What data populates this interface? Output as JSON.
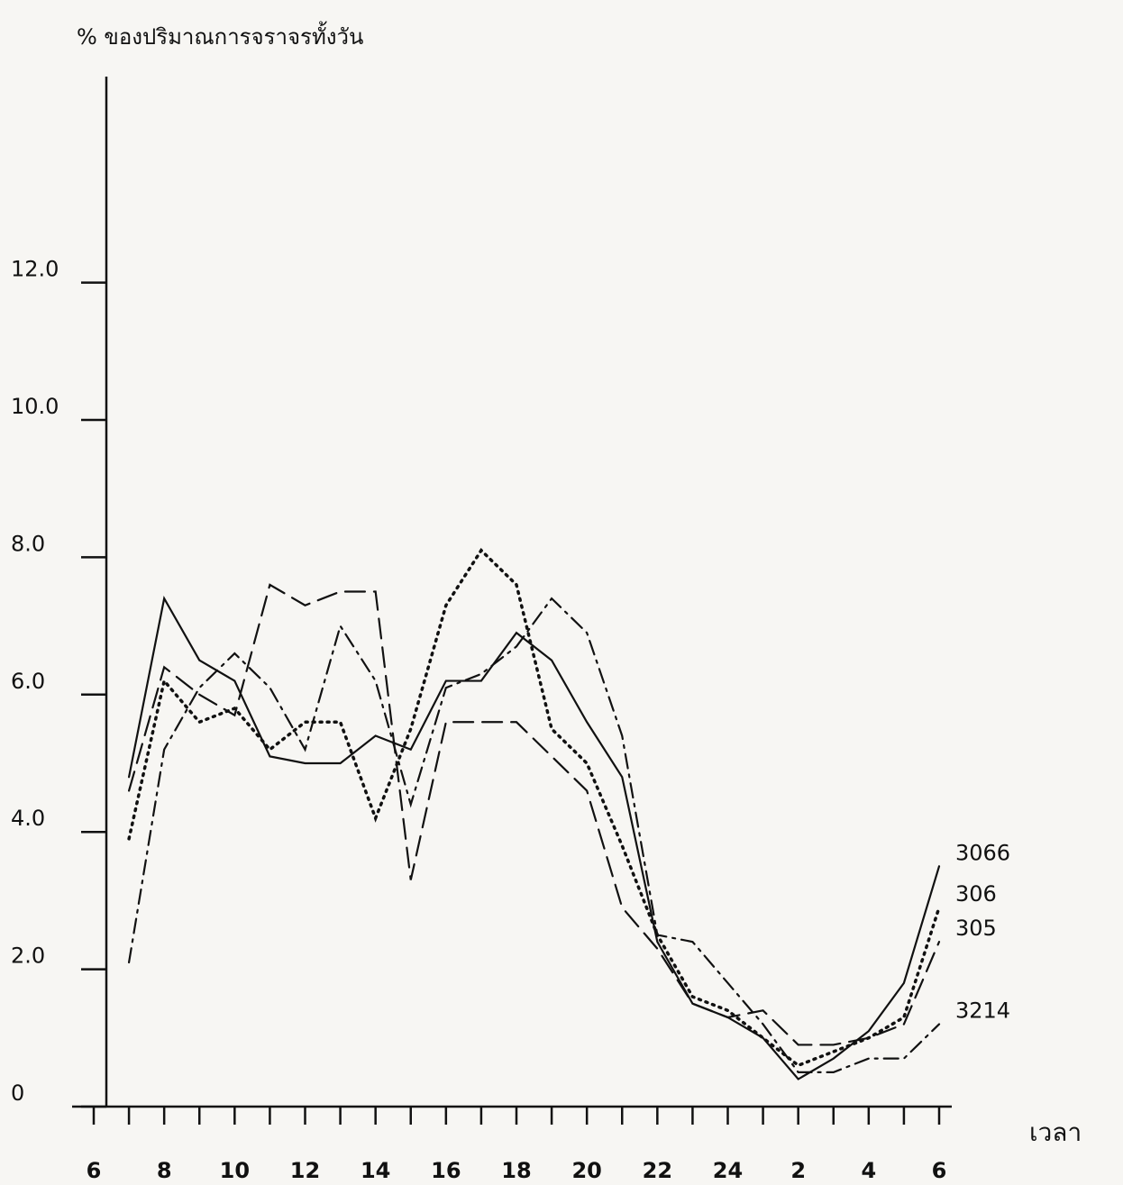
{
  "chart_data": {
    "type": "line",
    "title": "% ของปริมาณการจราจรทั้งวัน",
    "x_label": "เวลา",
    "x": [
      7,
      8,
      9,
      10,
      11,
      12,
      13,
      14,
      15,
      16,
      17,
      18,
      19,
      20,
      21,
      22,
      23,
      24,
      25,
      26,
      27,
      28,
      29,
      30
    ],
    "series": [
      {
        "name": "3066",
        "color": "#111111",
        "dash": "solid",
        "values": [
          4.8,
          7.4,
          6.5,
          6.2,
          5.1,
          5.0,
          5.0,
          5.4,
          5.2,
          6.2,
          6.2,
          6.9,
          6.5,
          5.6,
          4.8,
          2.4,
          1.5,
          1.3,
          1.0,
          0.4,
          0.7,
          1.1,
          1.8,
          3.5
        ]
      },
      {
        "name": "306",
        "color": "#111111",
        "dash": "dotted",
        "values": [
          3.9,
          6.2,
          5.6,
          5.8,
          5.2,
          5.6,
          5.6,
          4.2,
          5.5,
          7.3,
          8.1,
          7.6,
          5.5,
          5.0,
          3.8,
          2.5,
          1.6,
          1.4,
          1.0,
          0.6,
          0.8,
          1.0,
          1.3,
          2.9
        ]
      },
      {
        "name": "305",
        "color": "#111111",
        "dash": "dashed",
        "values": [
          4.6,
          6.4,
          6.0,
          5.7,
          7.6,
          7.3,
          7.5,
          7.5,
          3.3,
          5.6,
          5.6,
          5.6,
          5.1,
          4.6,
          2.9,
          2.3,
          1.5,
          1.3,
          1.4,
          0.9,
          0.9,
          1.0,
          1.2,
          2.4
        ]
      },
      {
        "name": "3214",
        "color": "#111111",
        "dash": "dashdot",
        "values": [
          2.1,
          5.2,
          6.1,
          6.6,
          6.1,
          5.2,
          7.0,
          6.2,
          4.4,
          6.1,
          6.3,
          6.7,
          7.4,
          6.9,
          5.4,
          2.5,
          2.4,
          1.8,
          1.2,
          0.5,
          0.5,
          0.7,
          0.7,
          1.2
        ]
      }
    ],
    "xlim": [
      6,
      30
    ],
    "xticks": [
      6,
      8,
      10,
      12,
      14,
      16,
      18,
      20,
      22,
      24,
      {
        "value": 26,
        "label": "2"
      },
      {
        "value": 28,
        "label": "4"
      },
      {
        "value": 30,
        "label": "6"
      }
    ],
    "xticks_minor": [
      7,
      9,
      11,
      13,
      15,
      17,
      19,
      21,
      23,
      25,
      27,
      29
    ],
    "ylim": [
      0,
      15
    ],
    "yticks": [
      0,
      {
        "value": 2,
        "label": "2.0"
      },
      {
        "value": 4,
        "label": "4.0"
      },
      {
        "value": 6,
        "label": "6.0"
      },
      {
        "value": 8,
        "label": "8.0"
      },
      {
        "value": 10,
        "label": "10.0"
      },
      {
        "value": 12,
        "label": "12.0"
      }
    ]
  }
}
